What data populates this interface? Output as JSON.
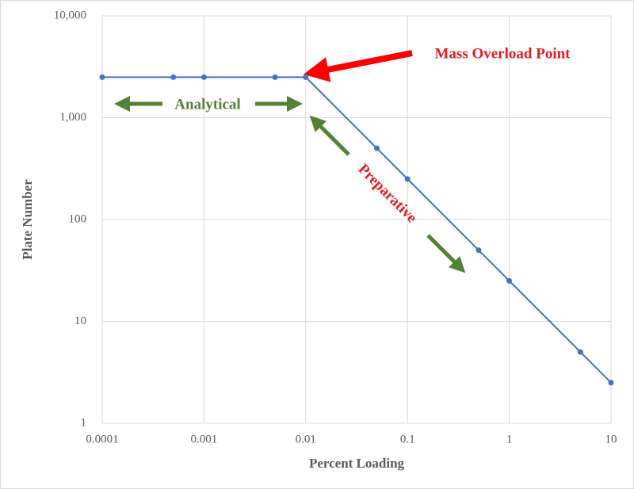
{
  "chart_data": {
    "type": "line",
    "x_label": "Percent Loading",
    "y_label": "Plate Number",
    "x": [
      0.0001,
      0.0005,
      0.001,
      0.005,
      0.01,
      0.05,
      0.1,
      0.5,
      1,
      5,
      10
    ],
    "values": [
      2500,
      2500,
      2500,
      2500,
      2500,
      500,
      250,
      50,
      25,
      5,
      2.5
    ],
    "color": "#4472c4",
    "xlim": [
      0.0001,
      10
    ],
    "ylim": [
      1,
      10000
    ],
    "xticks": [
      0.0001,
      0.001,
      0.01,
      0.1,
      1,
      10
    ],
    "yticks": [
      1,
      10,
      100,
      {
        "value": 1000,
        "label": "1,000"
      },
      {
        "value": 10000,
        "label": "10,000"
      }
    ],
    "x_log": true,
    "y_log": true,
    "grid": true,
    "annotations": [
      {
        "text": "Mass Overload Point",
        "color": "#e31b23"
      },
      {
        "text": "Analytical",
        "color": "#538135"
      },
      {
        "text": "Preparative",
        "color": "#e31b23"
      }
    ]
  }
}
